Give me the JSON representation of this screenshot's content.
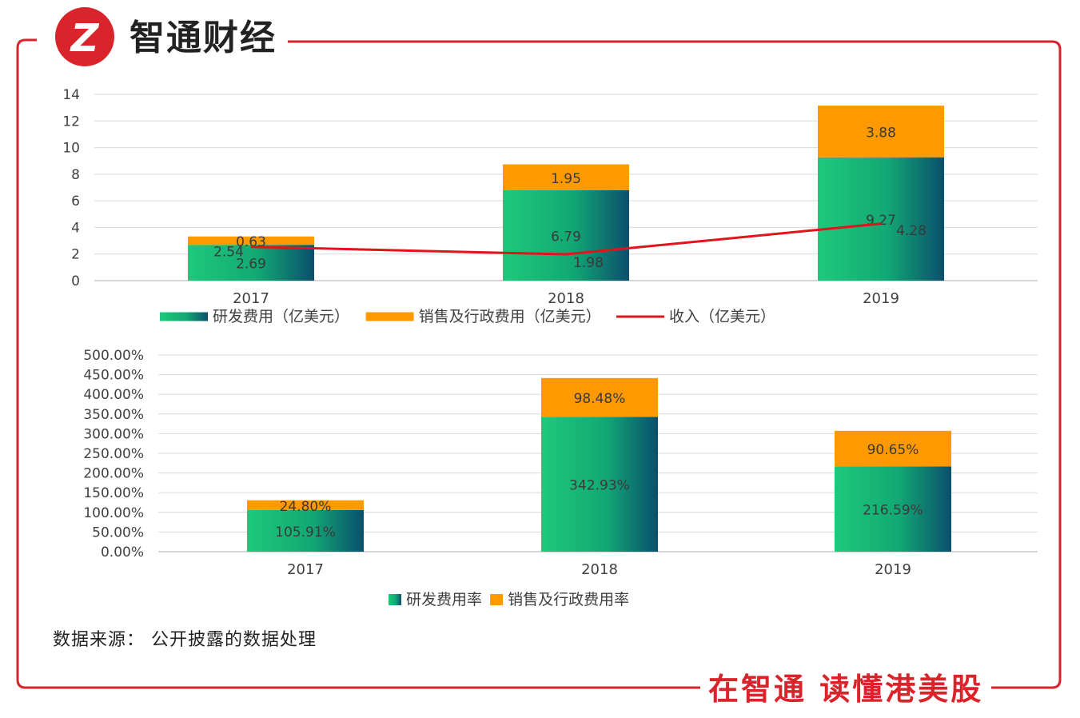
{
  "brand": {
    "name": "智通财经",
    "logo_mark": "Z",
    "slogan": "在智通  读懂港美股"
  },
  "colors": {
    "frame": "#d8242a",
    "rd_start": "#1ec97a",
    "rd_end": "#0b4f6c",
    "sga": "#ff9900",
    "line": "#e0141b"
  },
  "source_note": "数据来源： 公开披露的数据处理",
  "chart_data": [
    {
      "type": "bar",
      "categories": [
        "2017",
        "2018",
        "2019"
      ],
      "ylim": [
        0,
        14
      ],
      "yticks": [
        "0",
        "2",
        "4",
        "6",
        "8",
        "10",
        "12",
        "14"
      ],
      "series": [
        {
          "name": "研发费用（亿美元）",
          "kind": "bar",
          "values": [
            2.69,
            6.79,
            9.27
          ],
          "labels": [
            "2.69",
            "6.79",
            "9.27"
          ]
        },
        {
          "name": "销售及行政费用（亿美元）",
          "kind": "bar",
          "values": [
            0.63,
            1.95,
            3.88
          ],
          "labels": [
            "0.63",
            "1.95",
            "3.88"
          ]
        },
        {
          "name": "收入（亿美元）",
          "kind": "line",
          "values": [
            2.54,
            1.98,
            4.28
          ],
          "labels": [
            "2.54",
            "1.98",
            "4.28"
          ]
        }
      ],
      "legend": "bottom",
      "grid": true
    },
    {
      "type": "bar",
      "categories": [
        "2017",
        "2018",
        "2019"
      ],
      "ylim": [
        0,
        500
      ],
      "yticks": [
        "0.00%",
        "50.00%",
        "100.00%",
        "150.00%",
        "200.00%",
        "250.00%",
        "300.00%",
        "350.00%",
        "400.00%",
        "450.00%",
        "500.00%"
      ],
      "series": [
        {
          "name": "研发费用率",
          "kind": "bar",
          "values": [
            105.91,
            342.93,
            216.59
          ],
          "labels": [
            "105.91%",
            "342.93%",
            "216.59%"
          ]
        },
        {
          "name": "销售及行政费用率",
          "kind": "bar",
          "values": [
            24.8,
            98.48,
            90.65
          ],
          "labels": [
            "24.80%",
            "98.48%",
            "90.65%"
          ]
        }
      ],
      "legend": "bottom",
      "grid": true
    }
  ]
}
